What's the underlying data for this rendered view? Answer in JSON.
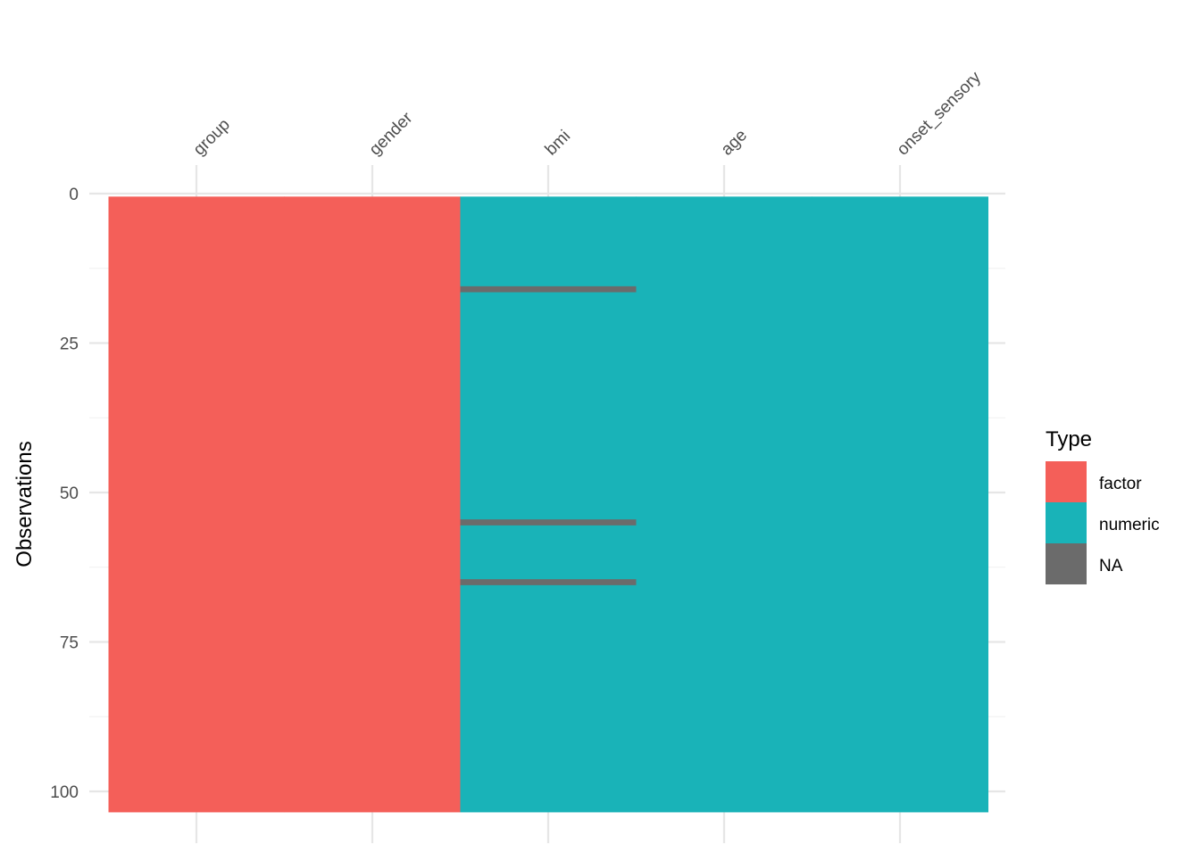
{
  "chart_data": {
    "type": "heatmap",
    "title": "",
    "xlabel": "",
    "ylabel": "Observations",
    "columns": [
      {
        "name": "group",
        "type": "factor",
        "na_rows": []
      },
      {
        "name": "gender",
        "type": "factor",
        "na_rows": []
      },
      {
        "name": "bmi",
        "type": "numeric",
        "na_rows": [
          16,
          55,
          65
        ]
      },
      {
        "name": "age",
        "type": "numeric",
        "na_rows": []
      },
      {
        "name": "onset_sensory",
        "type": "numeric",
        "na_rows": []
      }
    ],
    "n_rows": 103,
    "y_ticks": [
      0,
      25,
      50,
      75,
      100
    ],
    "y_tick_labels": [
      "0",
      "25",
      "50",
      "75",
      "100"
    ],
    "ylim": [
      0,
      103
    ],
    "y_reversed": true,
    "x_axis_position": "top",
    "grid": true,
    "legend": {
      "title": "Type",
      "placement": "right",
      "entries": [
        {
          "label": "factor",
          "color": "#F8766D"
        },
        {
          "label": "numeric",
          "color": "#00BFC4"
        },
        {
          "label": "NA",
          "color": "#6B6B6B"
        }
      ]
    },
    "colors": {
      "factor": "#F45F59",
      "numeric": "#19B3B8",
      "NA": "#6B6B6B"
    }
  }
}
